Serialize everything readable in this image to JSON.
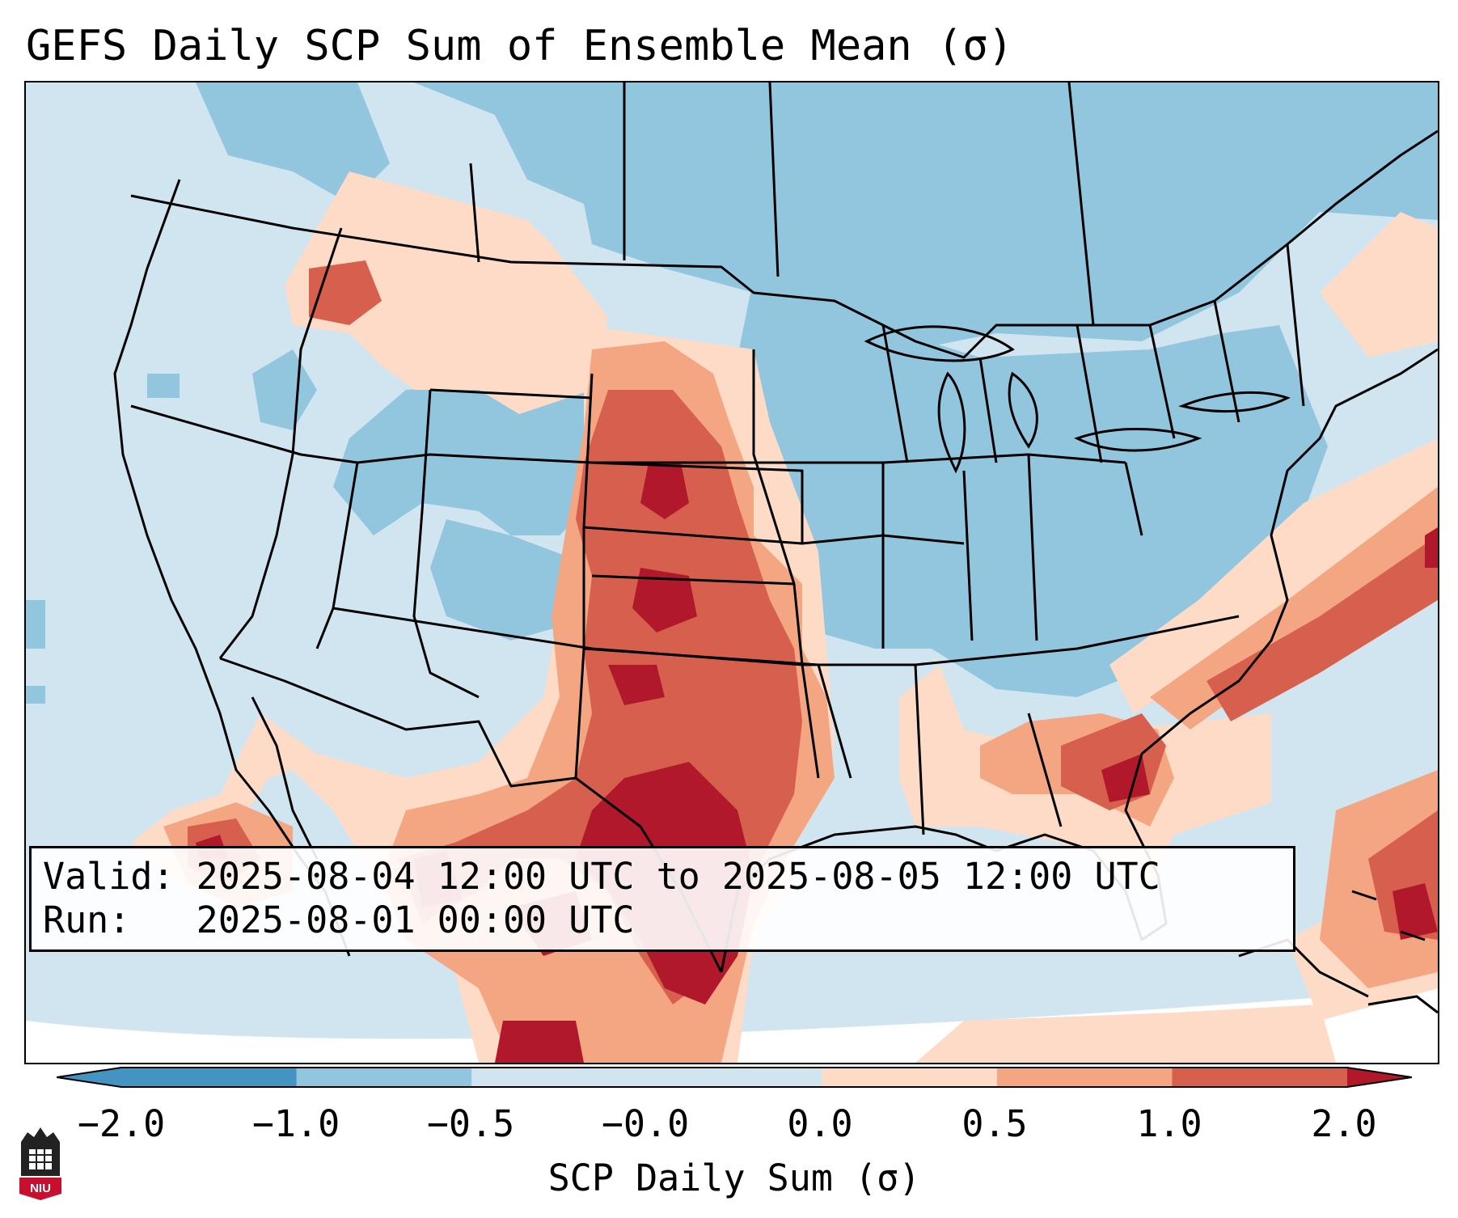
{
  "title": "GEFS Daily SCP Sum of Ensemble Mean (σ)",
  "info": {
    "valid_label": "Valid:",
    "valid_value": "2025-08-04 12:00 UTC to 2025-08-05 12:00 UTC",
    "run_label": "Run:",
    "run_value": "2025-08-01 00:00 UTC"
  },
  "colorbar": {
    "label": "SCP Daily Sum (σ)",
    "ticks": [
      "−2.0",
      "−1.0",
      "−0.5",
      "−0.0",
      "0.0",
      "0.5",
      "1.0",
      "2.0"
    ],
    "colors": [
      "#4393c3",
      "#92c5de",
      "#d1e5f0",
      "#d1e5f0",
      "#fddbc7",
      "#f4a582",
      "#d6604d",
      "#b2182b"
    ]
  },
  "logo": {
    "text": "NIU"
  },
  "colors": {
    "sigma_neg_1_0": "#92c5de",
    "sigma_neg_0_5": "#d1e5f0",
    "sigma_0_0_5": "#fddbc7",
    "sigma_0_5_1": "#f4a582",
    "sigma_1_2": "#d6604d",
    "sigma_gt_2": "#b2182b"
  }
}
